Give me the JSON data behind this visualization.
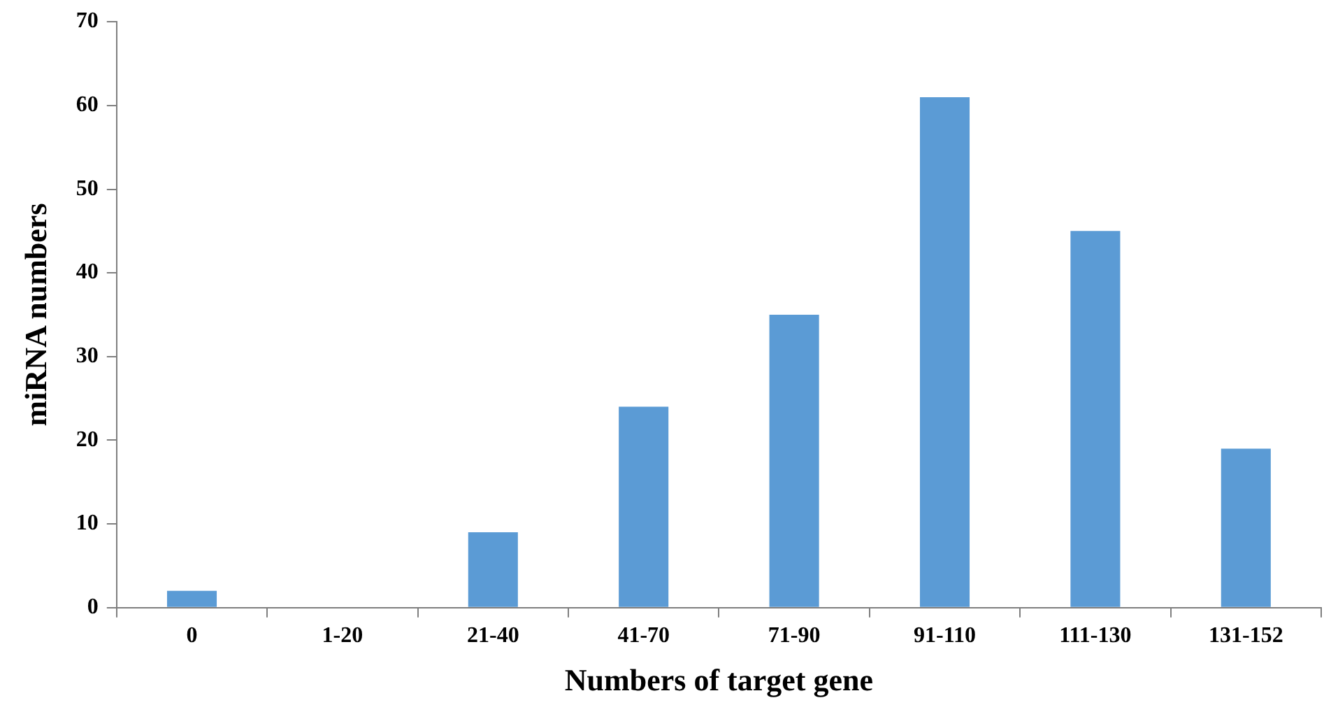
{
  "chart_data": {
    "type": "bar",
    "xlabel": "Numbers of target gene",
    "ylabel": "miRNA numbers",
    "categories": [
      "0",
      "1-20",
      "21-40",
      "41-70",
      "71-90",
      "91-110",
      "111-130",
      "131-152"
    ],
    "values": [
      2,
      0,
      9,
      24,
      35,
      61,
      45,
      19
    ],
    "color": "#5b9bd5",
    "ylim": [
      0,
      70
    ],
    "yticks": [
      0,
      10,
      20,
      30,
      40,
      50,
      60,
      70
    ]
  }
}
